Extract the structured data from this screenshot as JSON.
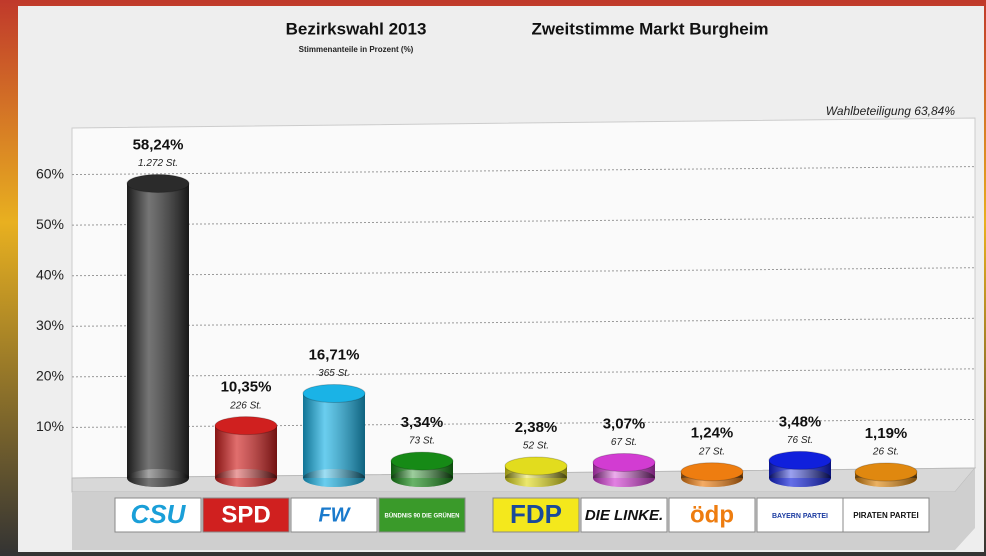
{
  "chart_data": {
    "type": "bar",
    "title": "Bezirkswahl 2013",
    "subtitle": "Stimmenanteile in Prozent (%)",
    "title2": "Zweitstimme Markt Burgheim",
    "annotation": "Wahlbeteiligung 63,84%",
    "categories": [
      "CSU",
      "SPD",
      "FW",
      "BÜNDNIS 90 DIE GRÜNEN",
      "FDP",
      "DIE LINKE.",
      "ödp",
      "BAYERN PARTEI",
      "PIRATEN PARTEI"
    ],
    "values": [
      58.24,
      10.35,
      16.71,
      3.34,
      2.38,
      3.07,
      1.24,
      3.48,
      1.19
    ],
    "value_labels": [
      "58,24%",
      "10,35%",
      "16,71%",
      "3,34%",
      "2,38%",
      "3,07%",
      "1,24%",
      "3,48%",
      "1,19%"
    ],
    "votes": [
      1272,
      226,
      365,
      73,
      52,
      67,
      27,
      76,
      26
    ],
    "vote_labels": [
      "1.272 St.",
      "226 St.",
      "365 St.",
      "73 St.",
      "52 St.",
      "67 St.",
      "27 St.",
      "76 St.",
      "26 St."
    ],
    "colors": [
      "#2b2b2b",
      "#d0201f",
      "#1ab3e6",
      "#168a16",
      "#e2dc1e",
      "#d23cd2",
      "#ee7d10",
      "#1020dc",
      "#e0880f"
    ],
    "ylim": [
      0,
      70
    ],
    "yticks": [
      {
        "value": 10,
        "label": "10%"
      },
      {
        "value": 20,
        "label": "20%"
      },
      {
        "value": 30,
        "label": "30%"
      },
      {
        "value": 40,
        "label": "40%"
      },
      {
        "value": 50,
        "label": "50%"
      },
      {
        "value": 60,
        "label": "60%"
      }
    ],
    "grid": true
  }
}
